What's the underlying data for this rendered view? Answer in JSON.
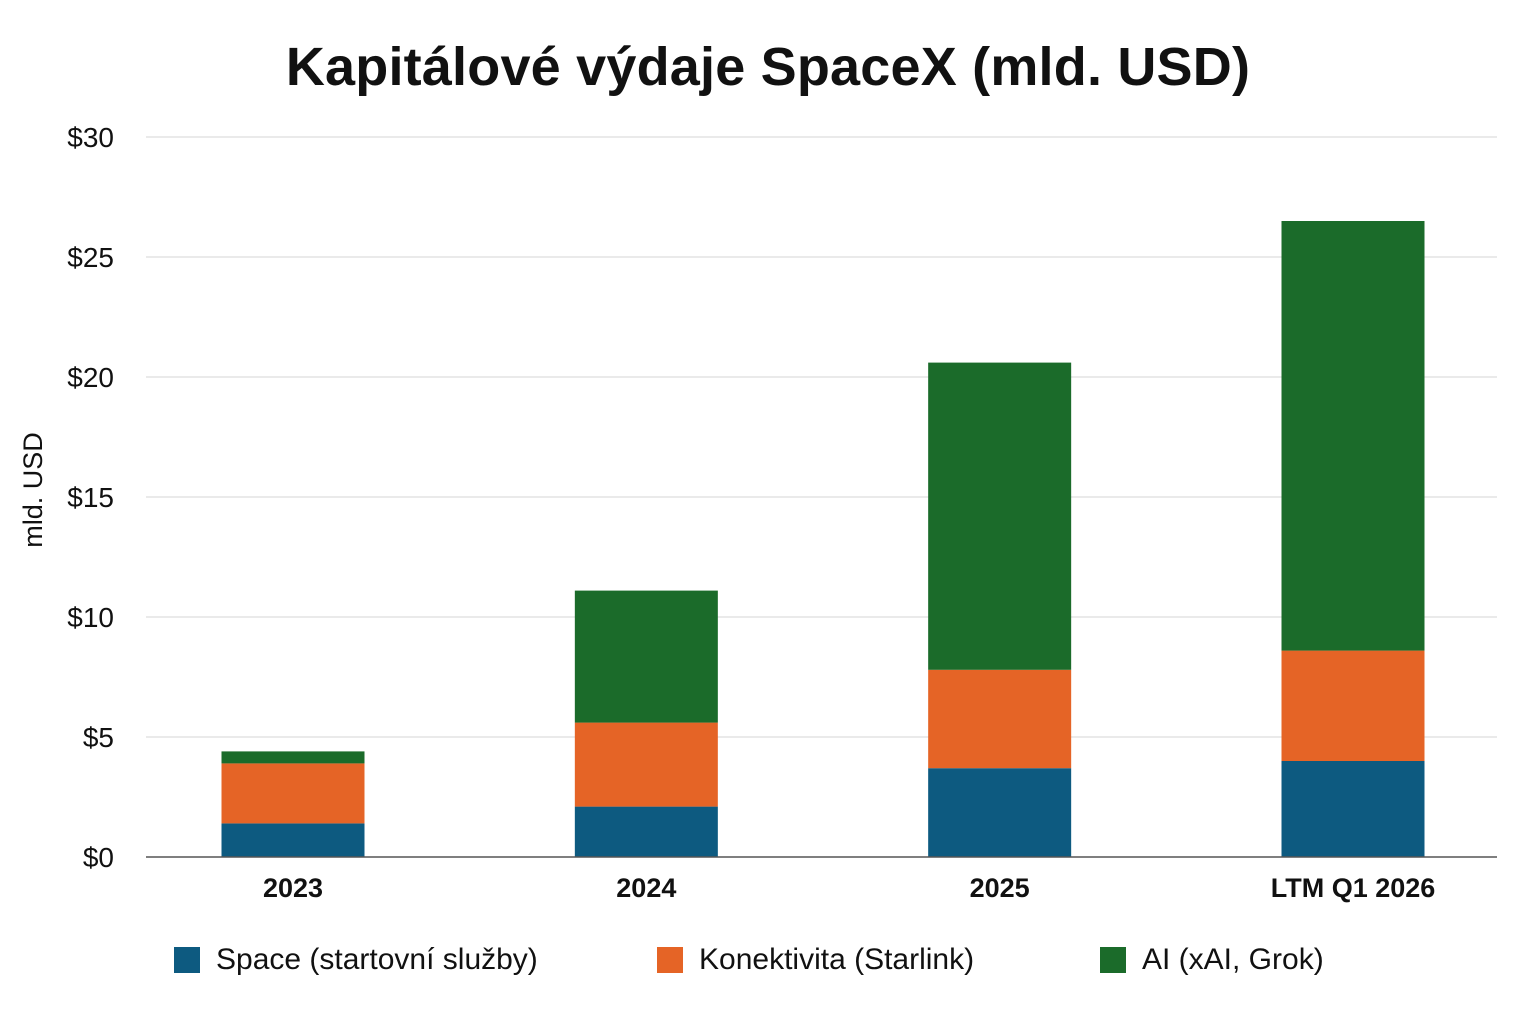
{
  "chart_data": {
    "type": "bar",
    "stacked": true,
    "title": "Kapitálové výdaje SpaceX (mld. USD)",
    "ylabel": "mld. USD",
    "xlabel": "",
    "categories": [
      "2023",
      "2024",
      "2025",
      "LTM Q1 2026"
    ],
    "series": [
      {
        "name": "Space (startovní služby)",
        "color": "#0d5a80",
        "values": [
          1.4,
          2.1,
          3.7,
          4.0
        ]
      },
      {
        "name": "Konektivita (Starlink)",
        "color": "#e56426",
        "values": [
          2.5,
          3.5,
          4.1,
          4.6
        ]
      },
      {
        "name": "AI (xAI, Grok)",
        "color": "#1b6b2a",
        "values": [
          0.5,
          5.5,
          12.8,
          17.9
        ]
      }
    ],
    "ylim": [
      0,
      30
    ],
    "yticks": [
      0,
      5,
      10,
      15,
      20,
      25,
      30
    ],
    "ytick_labels": [
      "$0",
      "$5",
      "$10",
      "$15",
      "$20",
      "$25",
      "$30"
    ],
    "grid": true,
    "legend": "bottom"
  }
}
